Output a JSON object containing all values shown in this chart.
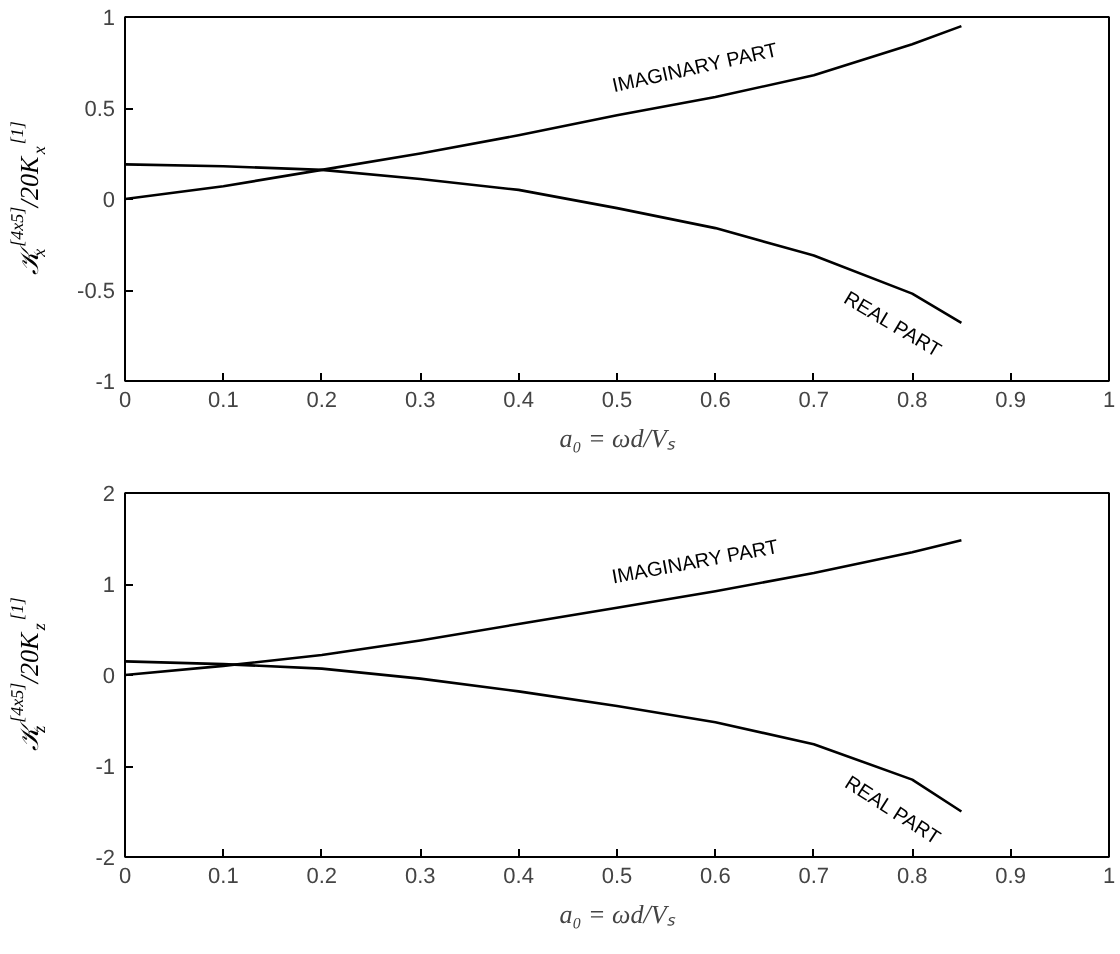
{
  "chart_data": [
    {
      "type": "line",
      "xlabel": "a₀ = ωd/Vₛ",
      "ylabel": "𝒦$_{x}$$^{[4x5]}$/20K$_{x}$$^{[1]}$",
      "x": [
        0,
        0.1,
        0.2,
        0.3,
        0.4,
        0.5,
        0.6,
        0.7,
        0.8,
        0.85
      ],
      "series": [
        {
          "name": "IMAGINARY PART",
          "color": "#000000",
          "values": [
            0,
            0.07,
            0.16,
            0.25,
            0.35,
            0.46,
            0.56,
            0.68,
            0.85,
            0.95
          ]
        },
        {
          "name": "REAL PART",
          "color": "#000000",
          "values": [
            0.19,
            0.18,
            0.16,
            0.11,
            0.05,
            -0.05,
            -0.16,
            -0.31,
            -0.52,
            -0.68
          ]
        }
      ],
      "xlim": [
        0,
        1
      ],
      "ylim": [
        -1,
        1
      ],
      "xticks": [
        0,
        0.1,
        0.2,
        0.3,
        0.4,
        0.5,
        0.6,
        0.7,
        0.8,
        0.9,
        1
      ],
      "yticks": [
        -1,
        -0.5,
        0,
        0.5,
        1
      ],
      "grid": false,
      "legend": false
    },
    {
      "type": "line",
      "xlabel": "a₀ = ωd/Vₛ",
      "ylabel": "𝒦$_{z}$$^{[4x5]}$/20K$_{z}$$^{[1]}$",
      "x": [
        0,
        0.1,
        0.2,
        0.3,
        0.4,
        0.5,
        0.6,
        0.7,
        0.8,
        0.85
      ],
      "series": [
        {
          "name": "IMAGINARY PART",
          "color": "#000000",
          "values": [
            0,
            0.1,
            0.22,
            0.38,
            0.56,
            0.74,
            0.92,
            1.12,
            1.35,
            1.48
          ]
        },
        {
          "name": "REAL PART",
          "color": "#000000",
          "values": [
            0.15,
            0.12,
            0.07,
            -0.04,
            -0.18,
            -0.34,
            -0.52,
            -0.76,
            -1.15,
            -1.5
          ]
        }
      ],
      "xlim": [
        0,
        1
      ],
      "ylim": [
        -2,
        2
      ],
      "xticks": [
        0,
        0.1,
        0.2,
        0.3,
        0.4,
        0.5,
        0.6,
        0.7,
        0.8,
        0.9,
        1
      ],
      "yticks": [
        -2,
        -1,
        0,
        1,
        2
      ],
      "grid": false,
      "legend": false
    }
  ]
}
